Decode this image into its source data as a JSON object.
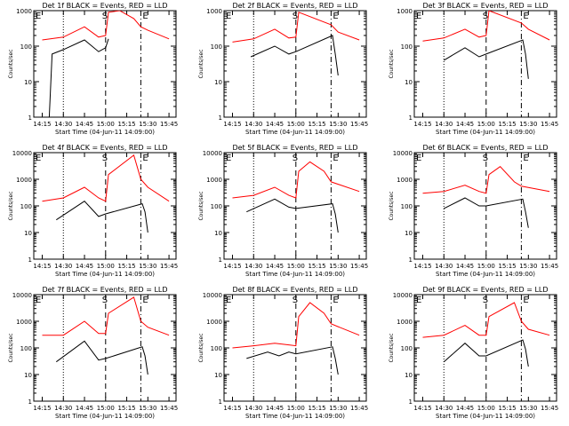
{
  "panel_title_suffix": "BLACK = Events, RED = LLD",
  "xlabel": "Start Time (04-Jun-11 14:09:00)",
  "ylabel": "Counts/sec",
  "marker_labels": {
    "start": "S",
    "end": "E"
  },
  "colors": {
    "events": "#000000",
    "lld": "#ff0000",
    "axes": "#000000",
    "background": "#ffffff"
  },
  "chart_data": [
    {
      "type": "line",
      "title": "Det 1f BLACK = Events, RED = LLD",
      "x_ticks": [
        "14:15",
        "14:30",
        "14:45",
        "15:00",
        "15:15",
        "15:30",
        "15:45"
      ],
      "y_scale": "log",
      "ylim": [
        1,
        1000
      ],
      "y_ticks": [
        "1",
        "10",
        "100",
        "1000"
      ],
      "markers": {
        "dotted": "14:30",
        "S": "15:00",
        "E": "15:25"
      },
      "series": [
        {
          "name": "Events",
          "color": "#000000",
          "x": [
            "14:20",
            "14:22",
            "14:30",
            "14:45",
            "14:55",
            "15:00",
            "15:02"
          ],
          "values": [
            1,
            60,
            80,
            150,
            70,
            90,
            160
          ]
        },
        {
          "name": "LLD",
          "color": "#ff0000",
          "x": [
            "14:15",
            "14:30",
            "14:45",
            "14:55",
            "15:00",
            "15:02",
            "15:10",
            "15:20",
            "15:25",
            "15:30",
            "15:45"
          ],
          "values": [
            150,
            180,
            350,
            180,
            200,
            900,
            1000,
            600,
            350,
            280,
            160
          ]
        }
      ]
    },
    {
      "type": "line",
      "title": "Det 2f BLACK = Events, RED = LLD",
      "x_ticks": [
        "14:15",
        "14:30",
        "14:45",
        "15:00",
        "15:15",
        "15:30",
        "15:45"
      ],
      "y_scale": "log",
      "ylim": [
        1,
        1000
      ],
      "y_ticks": [
        "1",
        "10",
        "100",
        "1000"
      ],
      "markers": {
        "dotted": "14:30",
        "S": "15:00",
        "E": "15:25"
      },
      "series": [
        {
          "name": "Events",
          "color": "#000000",
          "x": [
            "14:28",
            "14:45",
            "14:55",
            "15:00",
            "15:26",
            "15:28",
            "15:30"
          ],
          "values": [
            50,
            100,
            60,
            70,
            200,
            60,
            15
          ]
        },
        {
          "name": "LLD",
          "color": "#ff0000",
          "x": [
            "14:15",
            "14:30",
            "14:45",
            "14:55",
            "15:00",
            "15:02",
            "15:25",
            "15:30",
            "15:45"
          ],
          "values": [
            130,
            160,
            300,
            170,
            180,
            900,
            400,
            250,
            150
          ]
        }
      ]
    },
    {
      "type": "line",
      "title": "Det 3f BLACK = Events, RED = LLD",
      "x_ticks": [
        "14:15",
        "14:30",
        "14:45",
        "15:00",
        "15:15",
        "15:30",
        "15:45"
      ],
      "y_scale": "log",
      "ylim": [
        1,
        1000
      ],
      "y_ticks": [
        "1",
        "10",
        "100",
        "1000"
      ],
      "markers": {
        "dotted": "14:30",
        "S": "15:00",
        "E": "15:25"
      },
      "series": [
        {
          "name": "Events",
          "color": "#000000",
          "x": [
            "14:30",
            "14:45",
            "14:55",
            "15:00",
            "15:26",
            "15:28",
            "15:30"
          ],
          "values": [
            40,
            90,
            50,
            60,
            150,
            60,
            12
          ]
        },
        {
          "name": "LLD",
          "color": "#ff0000",
          "x": [
            "14:15",
            "14:30",
            "14:45",
            "14:55",
            "15:00",
            "15:02",
            "15:25",
            "15:30",
            "15:45"
          ],
          "values": [
            140,
            170,
            300,
            180,
            200,
            1000,
            450,
            300,
            150
          ]
        }
      ]
    },
    {
      "type": "line",
      "title": "Det 4f BLACK = Events, RED = LLD",
      "x_ticks": [
        "14:15",
        "14:30",
        "14:45",
        "15:00",
        "15:15",
        "15:30",
        "15:45"
      ],
      "y_scale": "log",
      "ylim": [
        1,
        10000
      ],
      "y_ticks": [
        "1",
        "10",
        "100",
        "1000",
        "10000"
      ],
      "markers": {
        "dotted": "14:30",
        "S": "15:00",
        "E": "15:25"
      },
      "series": [
        {
          "name": "Events",
          "color": "#000000",
          "x": [
            "14:25",
            "14:45",
            "14:55",
            "15:00",
            "15:26",
            "15:28",
            "15:30"
          ],
          "values": [
            30,
            150,
            40,
            50,
            120,
            60,
            10
          ]
        },
        {
          "name": "LLD",
          "color": "#ff0000",
          "x": [
            "14:15",
            "14:30",
            "14:45",
            "14:55",
            "15:00",
            "15:02",
            "15:20",
            "15:25",
            "15:30",
            "15:45"
          ],
          "values": [
            150,
            200,
            500,
            200,
            150,
            1500,
            8000,
            1000,
            500,
            150
          ]
        }
      ]
    },
    {
      "type": "line",
      "title": "Det 5f BLACK = Events, RED = LLD",
      "x_ticks": [
        "14:15",
        "14:30",
        "14:45",
        "15:00",
        "15:15",
        "15:30",
        "15:45"
      ],
      "y_scale": "log",
      "ylim": [
        1,
        10000
      ],
      "y_ticks": [
        "1",
        "10",
        "100",
        "1000",
        "10000"
      ],
      "markers": {
        "dotted": "14:30",
        "S": "15:00",
        "E": "15:25"
      },
      "series": [
        {
          "name": "Events",
          "color": "#000000",
          "x": [
            "14:25",
            "14:45",
            "14:55",
            "15:00",
            "15:26",
            "15:28",
            "15:30"
          ],
          "values": [
            60,
            180,
            90,
            80,
            120,
            50,
            10
          ]
        },
        {
          "name": "LLD",
          "color": "#ff0000",
          "x": [
            "14:15",
            "14:30",
            "14:45",
            "14:55",
            "15:00",
            "15:02",
            "15:10",
            "15:20",
            "15:25",
            "15:45"
          ],
          "values": [
            200,
            250,
            500,
            250,
            200,
            2000,
            4500,
            2000,
            800,
            350
          ]
        }
      ]
    },
    {
      "type": "line",
      "title": "Det 6f BLACK = Events, RED = LLD",
      "x_ticks": [
        "14:15",
        "14:30",
        "14:45",
        "15:00",
        "15:15",
        "15:30",
        "15:45"
      ],
      "y_scale": "log",
      "ylim": [
        1,
        10000
      ],
      "y_ticks": [
        "1",
        "10",
        "100",
        "1000",
        "10000"
      ],
      "markers": {
        "dotted": "14:30",
        "S": "15:00",
        "E": "15:25"
      },
      "series": [
        {
          "name": "Events",
          "color": "#000000",
          "x": [
            "14:30",
            "14:45",
            "14:55",
            "15:00",
            "15:26",
            "15:28",
            "15:30"
          ],
          "values": [
            80,
            200,
            100,
            100,
            180,
            60,
            15
          ]
        },
        {
          "name": "LLD",
          "color": "#ff0000",
          "x": [
            "14:15",
            "14:30",
            "14:45",
            "14:55",
            "15:00",
            "15:02",
            "15:10",
            "15:20",
            "15:25",
            "15:45"
          ],
          "values": [
            300,
            350,
            600,
            350,
            300,
            1500,
            3000,
            800,
            550,
            350
          ]
        }
      ]
    },
    {
      "type": "line",
      "title": "Det 7f BLACK = Events, RED = LLD",
      "x_ticks": [
        "14:15",
        "14:30",
        "14:45",
        "15:00",
        "15:15",
        "15:30",
        "15:45"
      ],
      "y_scale": "log",
      "ylim": [
        1,
        10000
      ],
      "y_ticks": [
        "1",
        "10",
        "100",
        "1000",
        "10000"
      ],
      "markers": {
        "dotted": "14:30",
        "S": "15:00",
        "E": "15:25"
      },
      "series": [
        {
          "name": "Events",
          "color": "#000000",
          "x": [
            "14:25",
            "14:45",
            "14:55",
            "15:00",
            "15:26",
            "15:28",
            "15:30"
          ],
          "values": [
            30,
            180,
            35,
            40,
            110,
            50,
            10
          ]
        },
        {
          "name": "LLD",
          "color": "#ff0000",
          "x": [
            "14:15",
            "14:30",
            "14:45",
            "14:55",
            "15:00",
            "15:02",
            "15:20",
            "15:25",
            "15:30",
            "15:45"
          ],
          "values": [
            300,
            300,
            1000,
            350,
            350,
            2000,
            8000,
            1000,
            600,
            300
          ]
        }
      ]
    },
    {
      "type": "line",
      "title": "Det 8f BLACK = Events, RED = LLD",
      "x_ticks": [
        "14:15",
        "14:30",
        "14:45",
        "15:00",
        "15:15",
        "15:30",
        "15:45"
      ],
      "y_scale": "log",
      "ylim": [
        1,
        10000
      ],
      "y_ticks": [
        "1",
        "10",
        "100",
        "1000",
        "10000"
      ],
      "markers": {
        "dotted": "14:30",
        "S": "15:00",
        "E": "15:25"
      },
      "series": [
        {
          "name": "Events",
          "color": "#000000",
          "x": [
            "14:25",
            "14:40",
            "14:48",
            "14:55",
            "15:00",
            "15:26",
            "15:28",
            "15:30"
          ],
          "values": [
            40,
            70,
            50,
            70,
            60,
            110,
            40,
            10
          ]
        },
        {
          "name": "LLD",
          "color": "#ff0000",
          "x": [
            "14:15",
            "14:30",
            "14:45",
            "14:55",
            "15:00",
            "15:02",
            "15:10",
            "15:20",
            "15:25",
            "15:45"
          ],
          "values": [
            100,
            120,
            150,
            130,
            120,
            1500,
            5000,
            2000,
            800,
            300
          ]
        }
      ]
    },
    {
      "type": "line",
      "title": "Det 9f BLACK = Events, RED = LLD",
      "x_ticks": [
        "14:15",
        "14:30",
        "14:45",
        "15:00",
        "15:15",
        "15:30",
        "15:45"
      ],
      "y_scale": "log",
      "ylim": [
        1,
        10000
      ],
      "y_ticks": [
        "1",
        "10",
        "100",
        "1000",
        "10000"
      ],
      "markers": {
        "dotted": "14:30",
        "S": "15:00",
        "E": "15:25"
      },
      "series": [
        {
          "name": "Events",
          "color": "#000000",
          "x": [
            "14:30",
            "14:45",
            "14:55",
            "15:00",
            "15:26",
            "15:28",
            "15:30"
          ],
          "values": [
            30,
            150,
            50,
            50,
            200,
            90,
            20
          ]
        },
        {
          "name": "LLD",
          "color": "#ff0000",
          "x": [
            "14:15",
            "14:30",
            "14:45",
            "14:55",
            "15:00",
            "15:02",
            "15:20",
            "15:25",
            "15:30",
            "15:45"
          ],
          "values": [
            250,
            300,
            700,
            300,
            300,
            1500,
            5000,
            1000,
            500,
            300
          ]
        }
      ]
    }
  ]
}
